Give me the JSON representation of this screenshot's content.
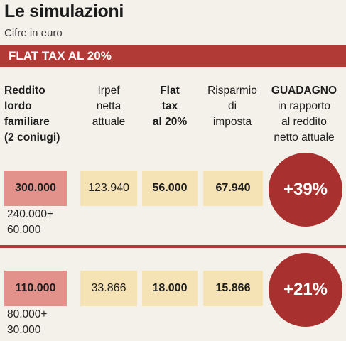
{
  "title": "Le simulazioni",
  "subtitle": "Cifre in euro",
  "banner": "FLAT TAX AL 20%",
  "headers": {
    "reddito": [
      "Reddito",
      "lordo",
      "familiare",
      "(2 coniugi)"
    ],
    "irpef": [
      "Irpef",
      "netta",
      "attuale"
    ],
    "flat": [
      "Flat",
      "tax",
      "al 20%"
    ],
    "risparmio": [
      "Risparmio",
      "di",
      "imposta"
    ],
    "guadagno_title": "GUADAGNO",
    "guadagno": [
      "in rapporto",
      "al reddito",
      "netto attuale"
    ]
  },
  "rows": [
    {
      "reddito": "300.000",
      "split": [
        "240.000+",
        "60.000"
      ],
      "irpef": "123.940",
      "flat": "56.000",
      "risparmio": "67.940",
      "guadagno": "+39%"
    },
    {
      "reddito": "110.000",
      "split": [
        "80.000+",
        "30.000"
      ],
      "irpef": "33.866",
      "flat": "18.000",
      "risparmio": "15.866",
      "guadagno": "+21%"
    }
  ],
  "colors": {
    "accent": "#b23a36",
    "circle": "#a8302f",
    "reddito_cell": "#e2928a",
    "beige_cell": "#f5e3b6"
  }
}
